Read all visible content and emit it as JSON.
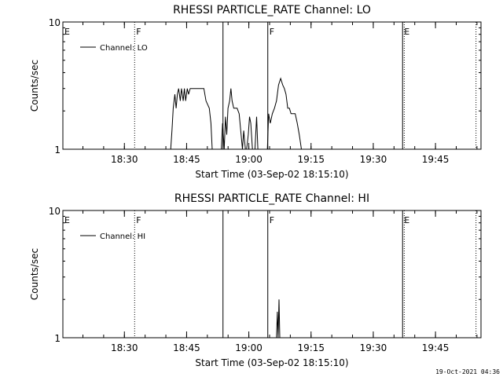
{
  "footer": {
    "timestamp": "19-Oct-2021 04:36"
  },
  "colors": {
    "background": "#ffffff",
    "foreground": "#000000"
  },
  "chart_data": [
    {
      "type": "line",
      "title": "RHESSI PARTICLE_RATE Channel: LO",
      "xlabel": "Start Time (03-Sep-02 18:15:10)",
      "ylabel": "Counts/sec",
      "yscale": "log",
      "ylim": [
        1,
        10
      ],
      "ytick_labels": [
        "1",
        "10"
      ],
      "xlim_minutes": [
        0,
        100.8
      ],
      "x_ticks": [
        {
          "label": "18:30",
          "minutes": 14.83
        },
        {
          "label": "18:45",
          "minutes": 29.83
        },
        {
          "label": "19:00",
          "minutes": 44.83
        },
        {
          "label": "19:15",
          "minutes": 59.83
        },
        {
          "label": "19:30",
          "minutes": 74.83
        },
        {
          "label": "19:45",
          "minutes": 89.83
        }
      ],
      "legend": {
        "label": "Channel: LO",
        "placement": "top-left"
      },
      "markers": [
        {
          "label": "E",
          "minutes": 0.0,
          "style": "dotted"
        },
        {
          "label": "F",
          "minutes": 17.3,
          "style": "dotted"
        },
        {
          "label": "",
          "minutes": 38.6,
          "style": "solid"
        },
        {
          "label": "F",
          "minutes": 49.4,
          "style": "solid"
        },
        {
          "label": "E",
          "minutes": 81.9,
          "style": "solid"
        },
        {
          "label": "",
          "minutes": 82.3,
          "style": "dotted"
        },
        {
          "label": "",
          "minutes": 99.6,
          "style": "dotted"
        }
      ],
      "series": [
        {
          "name": "Channel: LO",
          "x": [
            0,
            26.0,
            26.3,
            26.6,
            27.0,
            27.3,
            27.6,
            27.9,
            28.3,
            28.6,
            29.0,
            29.3,
            29.6,
            30.0,
            30.3,
            30.7,
            31.0,
            31.5,
            32.5,
            34.0,
            34.5,
            35.3,
            35.7,
            36.0,
            36.2,
            36.5,
            37.0,
            38.2,
            38.5,
            38.9,
            39.2,
            39.5,
            39.8,
            40.2,
            40.5,
            40.8,
            41.2,
            41.5,
            42.0,
            42.5,
            43.3,
            43.6,
            44.0,
            44.3,
            44.7,
            45.0,
            45.3,
            45.7,
            46.0,
            46.3,
            46.7,
            47.0,
            47.3,
            47.7,
            48.0,
            49.3,
            49.6,
            50.0,
            50.5,
            51.0,
            51.5,
            52.0,
            52.5,
            53.0,
            53.4,
            53.8,
            54.2,
            54.6,
            55.0,
            55.5,
            56.0,
            56.5,
            57.0,
            57.5,
            100.8
          ],
          "y": [
            1,
            1,
            1.4,
            2.1,
            2.7,
            2.1,
            2.7,
            3.0,
            2.4,
            3.0,
            2.4,
            3.0,
            2.4,
            3.0,
            2.7,
            3.0,
            3.0,
            3.0,
            3.0,
            3.0,
            2.4,
            2.1,
            1.6,
            1.0,
            1.0,
            1.0,
            1.0,
            1.0,
            1.6,
            1.0,
            1.8,
            1.3,
            2.1,
            2.4,
            3.0,
            2.4,
            2.1,
            2.1,
            2.1,
            1.9,
            1.0,
            1.4,
            1.0,
            1.0,
            1.3,
            1.8,
            1.6,
            1.0,
            1.0,
            1.0,
            1.8,
            1.0,
            1.0,
            1.0,
            1.0,
            1.0,
            1.9,
            1.6,
            1.9,
            2.1,
            2.4,
            3.2,
            3.6,
            3.2,
            3.0,
            2.7,
            2.1,
            2.1,
            1.9,
            1.9,
            1.9,
            1.6,
            1.3,
            1.0,
            1.0
          ]
        }
      ]
    },
    {
      "type": "line",
      "title": "RHESSI PARTICLE_RATE Channel: HI",
      "xlabel": "Start Time (03-Sep-02 18:15:10)",
      "ylabel": "Counts/sec",
      "yscale": "log",
      "ylim": [
        1,
        10
      ],
      "ytick_labels": [
        "1",
        "10"
      ],
      "xlim_minutes": [
        0,
        100.8
      ],
      "x_ticks": [
        {
          "label": "18:30",
          "minutes": 14.83
        },
        {
          "label": "18:45",
          "minutes": 29.83
        },
        {
          "label": "19:00",
          "minutes": 44.83
        },
        {
          "label": "19:15",
          "minutes": 59.83
        },
        {
          "label": "19:30",
          "minutes": 74.83
        },
        {
          "label": "19:45",
          "minutes": 89.83
        }
      ],
      "legend": {
        "label": "Channel: HI",
        "placement": "top-left"
      },
      "markers": [
        {
          "label": "E",
          "minutes": 0.0,
          "style": "dotted"
        },
        {
          "label": "F",
          "minutes": 17.3,
          "style": "dotted"
        },
        {
          "label": "",
          "minutes": 38.6,
          "style": "solid"
        },
        {
          "label": "F",
          "minutes": 49.4,
          "style": "solid"
        },
        {
          "label": "E",
          "minutes": 81.9,
          "style": "solid"
        },
        {
          "label": "",
          "minutes": 82.3,
          "style": "dotted"
        },
        {
          "label": "",
          "minutes": 99.6,
          "style": "dotted"
        }
      ],
      "series": [
        {
          "name": "Channel: HI",
          "x": [
            0,
            51.5,
            51.7,
            51.9,
            52.1,
            52.3,
            100.8
          ],
          "y": [
            1,
            1,
            1.6,
            1.0,
            2.0,
            1.0,
            1.0
          ]
        }
      ]
    }
  ]
}
